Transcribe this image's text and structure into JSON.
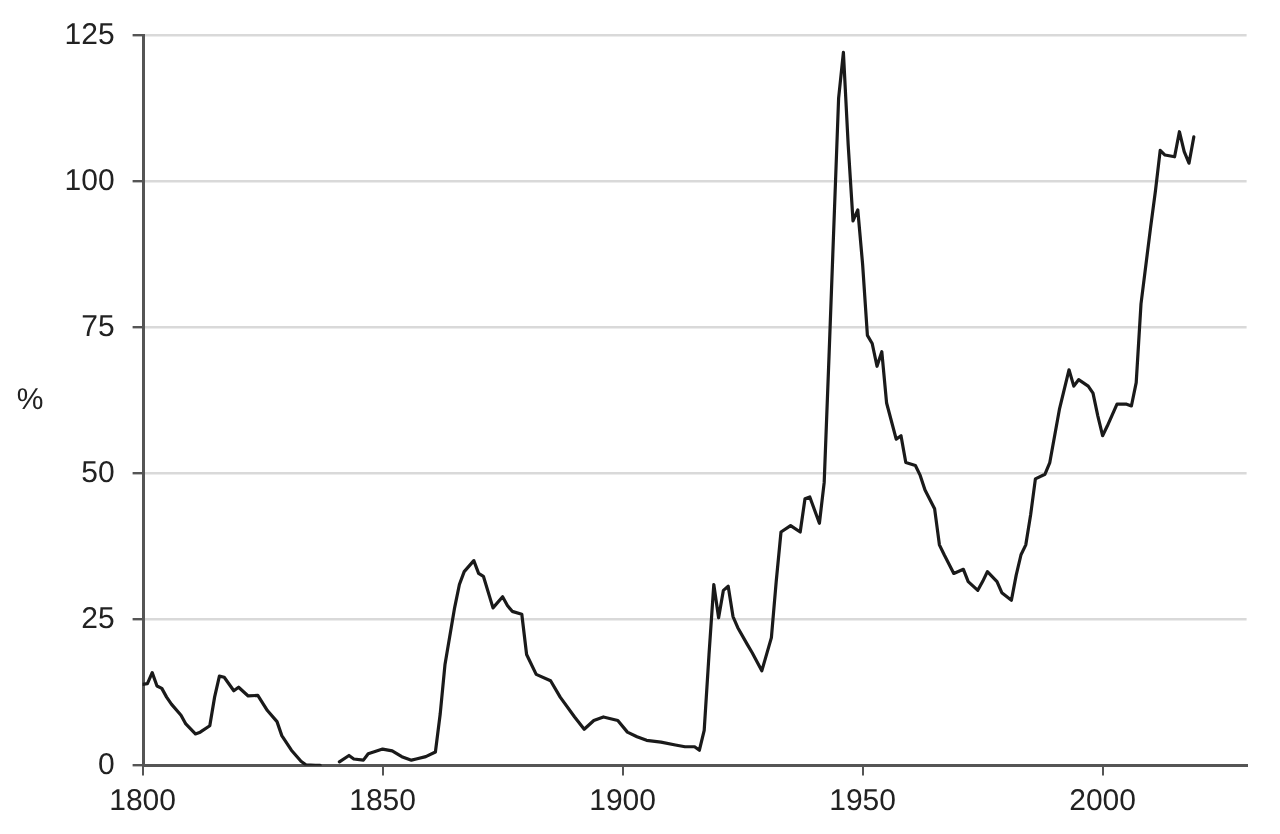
{
  "chart_data": {
    "type": "line",
    "ylabel": "%",
    "color": "#1a1a1a",
    "line_style": "solid",
    "grid": "y",
    "xlim": [
      1800,
      2030
    ],
    "xticks": [
      1800,
      1850,
      1900,
      1950,
      2000
    ],
    "ylim": [
      0,
      125
    ],
    "yticks": [
      0,
      25,
      50,
      75,
      100,
      125
    ],
    "x": [
      1800,
      1801,
      1802,
      1803,
      1804,
      1805,
      1806,
      1808,
      1809,
      1811,
      1812,
      1814,
      1815,
      1816,
      1817,
      1819,
      1820,
      1822,
      1824,
      1826,
      1828,
      1829,
      1831,
      1833,
      1834,
      1836,
      1837,
      1839,
      1841,
      1843,
      1844,
      1846,
      1847,
      1850,
      1852,
      1854,
      1856,
      1857,
      1859,
      1861,
      1862,
      1863,
      1865,
      1866,
      1867,
      1869,
      1870,
      1871,
      1873,
      1875,
      1876,
      1877,
      1879,
      1880,
      1882,
      1885,
      1887,
      1890,
      1892,
      1894,
      1896,
      1899,
      1901,
      1903,
      1905,
      1908,
      1911,
      1913,
      1915,
      1916,
      1917,
      1918,
      1919,
      1920,
      1921,
      1922,
      1923,
      1924,
      1926,
      1927,
      1929,
      1931,
      1932,
      1933,
      1935,
      1937,
      1938,
      1939,
      1941,
      1942,
      1943,
      1945,
      1946,
      1947,
      1948,
      1949,
      1950,
      1951,
      1952,
      1953,
      1954,
      1955,
      1957,
      1958,
      1959,
      1961,
      1962,
      1963,
      1965,
      1966,
      1967,
      1969,
      1971,
      1972,
      1974,
      1975,
      1976,
      1978,
      1979,
      1981,
      1982,
      1983,
      1984,
      1985,
      1986,
      1988,
      1989,
      1991,
      1993,
      1994,
      1995,
      1997,
      1998,
      1999,
      2000,
      2001,
      2003,
      2005,
      2006,
      2007,
      2008,
      2010,
      2011,
      2012,
      2013,
      2015,
      2016,
      2017,
      2018,
      2019
    ],
    "values": [
      13.9,
      14.0,
      15.9,
      13.6,
      13.2,
      11.7,
      10.5,
      8.6,
      7.1,
      5.4,
      5.7,
      6.8,
      11.7,
      15.3,
      15.1,
      12.8,
      13.4,
      11.9,
      12.0,
      9.4,
      7.5,
      5.1,
      2.6,
      0.7,
      0.1,
      0,
      0,
      null,
      0.6,
      1.7,
      1.1,
      0.9,
      2.0,
      2.8,
      2.5,
      1.5,
      0.9,
      1.1,
      1.5,
      2.3,
      8.8,
      17.3,
      27.0,
      31.0,
      33.2,
      35.1,
      32.9,
      32.4,
      27.0,
      28.9,
      27.4,
      26.4,
      25.9,
      19.0,
      15.6,
      14.5,
      11.7,
      8.3,
      6.2,
      7.7,
      8.3,
      7.7,
      5.7,
      4.9,
      4.3,
      4.0,
      3.5,
      3.2,
      3.2,
      2.6,
      6.0,
      19.0,
      31.0,
      25.3,
      30.0,
      30.7,
      25.5,
      23.6,
      20.7,
      19.3,
      16.2,
      21.9,
      31.5,
      40.0,
      41.1,
      40.0,
      45.7,
      46.0,
      41.5,
      48.5,
      70.0,
      114.3,
      122.2,
      106.3,
      93.3,
      95.2,
      85.9,
      73.7,
      72.3,
      68.4,
      70.9,
      62.1,
      55.9,
      56.5,
      51.9,
      51.4,
      49.7,
      47.2,
      44.0,
      37.8,
      36.1,
      32.9,
      33.6,
      31.5,
      30.0,
      31.5,
      33.2,
      31.5,
      29.6,
      28.3,
      32.6,
      36.1,
      37.8,
      42.9,
      49.1,
      49.9,
      51.9,
      61.0,
      67.8,
      65.0,
      66.1,
      65.0,
      63.8,
      59.9,
      56.5,
      58.2,
      61.9,
      61.9,
      61.6,
      65.6,
      79.1,
      92.2,
      98.4,
      105.4,
      104.6,
      104.3,
      108.6,
      105.2,
      103.2,
      107.7
    ]
  }
}
